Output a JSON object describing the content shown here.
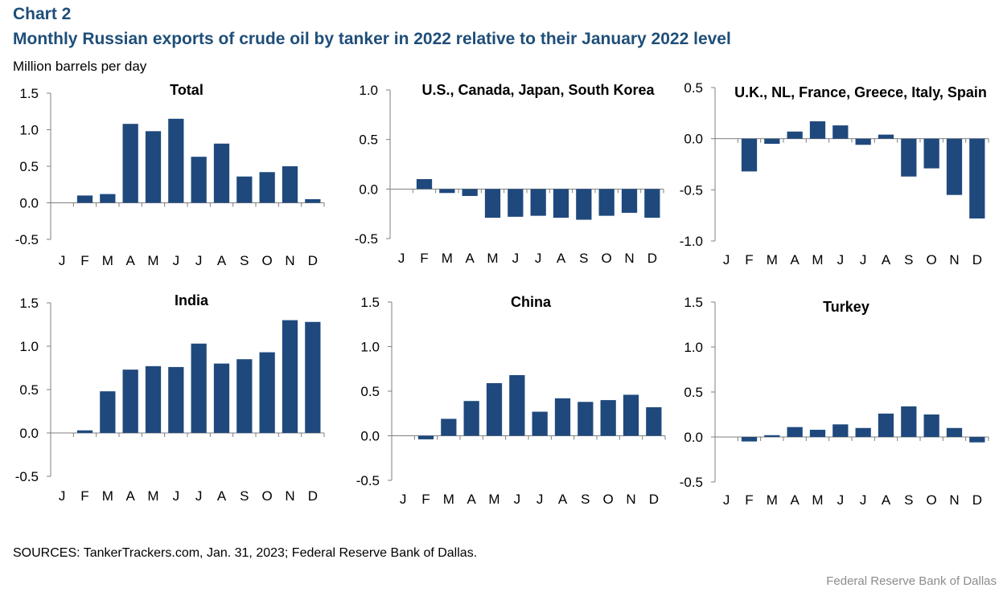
{
  "header": {
    "label": "Chart 2",
    "title": "Monthly Russian exports of crude oil by tanker in 2022 relative to their January 2022 level",
    "unit": "Million barrels per day"
  },
  "footer": {
    "sources": "SOURCES: TankerTrackers.com, Jan. 31, 2023; Federal Reserve Bank of Dallas.",
    "brand": "Federal Reserve Bank of Dallas"
  },
  "colors": {
    "bar": "#1f497d",
    "title": "#1f4e79",
    "axis": "#7f7f7f"
  },
  "chart_data": [
    {
      "type": "bar",
      "title": "Total",
      "categories": [
        "J",
        "F",
        "M",
        "A",
        "M",
        "J",
        "J",
        "A",
        "S",
        "O",
        "N",
        "D"
      ],
      "values": [
        0,
        0.1,
        0.12,
        1.08,
        0.98,
        1.15,
        0.63,
        0.81,
        0.36,
        0.42,
        0.5,
        0.05
      ],
      "ylim": [
        -0.5,
        1.5
      ],
      "yticks": [
        "-0.5",
        "0.0",
        "0.5",
        "1.0",
        "1.5"
      ],
      "grid": false
    },
    {
      "type": "bar",
      "title": "U.S., Canada, Japan, South Korea",
      "categories": [
        "J",
        "F",
        "M",
        "A",
        "M",
        "J",
        "J",
        "A",
        "S",
        "O",
        "N",
        "D"
      ],
      "values": [
        0,
        0.1,
        -0.04,
        -0.07,
        -0.29,
        -0.28,
        -0.27,
        -0.29,
        -0.31,
        -0.27,
        -0.24,
        -0.29
      ],
      "ylim": [
        -0.5,
        1.0
      ],
      "yticks": [
        "-0.5",
        "0.0",
        "0.5",
        "1.0"
      ],
      "grid": false
    },
    {
      "type": "bar",
      "title": "U.K., NL, France, Greece, Italy, Spain",
      "categories": [
        "J",
        "F",
        "M",
        "A",
        "M",
        "J",
        "J",
        "A",
        "S",
        "O",
        "N",
        "D"
      ],
      "values": [
        0,
        -0.32,
        -0.05,
        0.07,
        0.17,
        0.13,
        -0.06,
        0.04,
        -0.37,
        -0.29,
        -0.55,
        -0.78
      ],
      "ylim": [
        -1.0,
        0.5
      ],
      "yticks": [
        "-1.0",
        "-0.5",
        "0.0",
        "0.5"
      ],
      "grid": false
    },
    {
      "type": "bar",
      "title": "India",
      "categories": [
        "J",
        "F",
        "M",
        "A",
        "M",
        "J",
        "J",
        "A",
        "S",
        "O",
        "N",
        "D"
      ],
      "values": [
        0,
        0.03,
        0.48,
        0.73,
        0.77,
        0.76,
        1.03,
        0.8,
        0.85,
        0.93,
        1.3,
        1.28
      ],
      "ylim": [
        -0.5,
        1.5
      ],
      "yticks": [
        "-0.5",
        "0.0",
        "0.5",
        "1.0",
        "1.5"
      ],
      "grid": false
    },
    {
      "type": "bar",
      "title": "China",
      "categories": [
        "J",
        "F",
        "M",
        "A",
        "M",
        "J",
        "J",
        "A",
        "S",
        "O",
        "N",
        "D"
      ],
      "values": [
        0,
        -0.04,
        0.19,
        0.39,
        0.59,
        0.68,
        0.27,
        0.42,
        0.38,
        0.4,
        0.46,
        0.32
      ],
      "ylim": [
        -0.5,
        1.5
      ],
      "yticks": [
        "-0.5",
        "0.0",
        "0.5",
        "1.0",
        "1.5"
      ],
      "grid": false
    },
    {
      "type": "bar",
      "title": "Turkey",
      "categories": [
        "J",
        "F",
        "M",
        "A",
        "M",
        "J",
        "J",
        "A",
        "S",
        "O",
        "N",
        "D"
      ],
      "values": [
        0,
        -0.05,
        0.02,
        0.11,
        0.08,
        0.14,
        0.1,
        0.26,
        0.34,
        0.25,
        0.1,
        -0.06
      ],
      "ylim": [
        -0.5,
        1.5
      ],
      "yticks": [
        "-0.5",
        "0.0",
        "0.5",
        "1.0",
        "1.5"
      ],
      "grid": false
    }
  ]
}
